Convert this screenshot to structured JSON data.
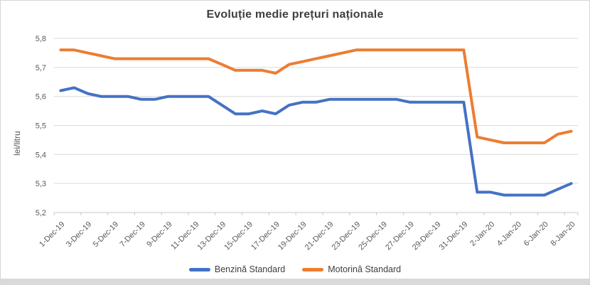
{
  "chart_data": {
    "type": "line",
    "title": "Evoluție medie prețuri naționale",
    "ylabel": "lei/litru",
    "xlabel": "",
    "ylim": [
      5.2,
      5.8
    ],
    "grid": true,
    "legend_position": "bottom",
    "decimal_separator": ",",
    "y_ticks": [
      {
        "label": "5,8",
        "value": 5.8
      },
      {
        "label": "5,7",
        "value": 5.7
      },
      {
        "label": "5,6",
        "value": 5.6
      },
      {
        "label": "5,5",
        "value": 5.5
      },
      {
        "label": "5,4",
        "value": 5.4
      },
      {
        "label": "5,3",
        "value": 5.3
      },
      {
        "label": "5,2",
        "value": 5.2
      }
    ],
    "categories": [
      "1-Dec-19",
      "2-Dec-19",
      "3-Dec-19",
      "4-Dec-19",
      "5-Dec-19",
      "6-Dec-19",
      "7-Dec-19",
      "8-Dec-19",
      "9-Dec-19",
      "10-Dec-19",
      "11-Dec-19",
      "12-Dec-19",
      "13-Dec-19",
      "14-Dec-19",
      "15-Dec-19",
      "16-Dec-19",
      "17-Dec-19",
      "18-Dec-19",
      "19-Dec-19",
      "20-Dec-19",
      "21-Dec-19",
      "22-Dec-19",
      "23-Dec-19",
      "24-Dec-19",
      "25-Dec-19",
      "26-Dec-19",
      "27-Dec-19",
      "28-Dec-19",
      "29-Dec-19",
      "30-Dec-19",
      "31-Dec-19",
      "1-Jan-20",
      "2-Jan-20",
      "3-Jan-20",
      "4-Jan-20",
      "5-Jan-20",
      "6-Jan-20",
      "7-Jan-20",
      "8-Jan-20"
    ],
    "x_tick_labels": [
      "1-Dec-19",
      "3-Dec-19",
      "5-Dec-19",
      "7-Dec-19",
      "9-Dec-19",
      "11-Dec-19",
      "13-Dec-19",
      "15-Dec-19",
      "17-Dec-19",
      "19-Dec-19",
      "21-Dec-19",
      "23-Dec-19",
      "25-Dec-19",
      "27-Dec-19",
      "29-Dec-19",
      "31-Dec-19",
      "2-Jan-20",
      "4-Jan-20",
      "6-Jan-20",
      "8-Jan-20"
    ],
    "series": [
      {
        "name": "Benzină Standard",
        "color": "#4472C4",
        "values": [
          5.62,
          5.63,
          5.61,
          5.6,
          5.6,
          5.6,
          5.59,
          5.59,
          5.6,
          5.6,
          5.6,
          5.6,
          5.57,
          5.54,
          5.54,
          5.55,
          5.54,
          5.57,
          5.58,
          5.58,
          5.59,
          5.59,
          5.59,
          5.59,
          5.59,
          5.59,
          5.58,
          5.58,
          5.58,
          5.58,
          5.58,
          5.27,
          5.27,
          5.26,
          5.26,
          5.26,
          5.26,
          5.28,
          5.3
        ]
      },
      {
        "name": "Motorinâ Standard",
        "color": "#ED7D31",
        "values": [
          5.76,
          5.76,
          5.75,
          5.74,
          5.73,
          5.73,
          5.73,
          5.73,
          5.73,
          5.73,
          5.73,
          5.73,
          5.71,
          5.69,
          5.69,
          5.69,
          5.68,
          5.71,
          5.72,
          5.73,
          5.74,
          5.75,
          5.76,
          5.76,
          5.76,
          5.76,
          5.76,
          5.76,
          5.76,
          5.76,
          5.76,
          5.46,
          5.45,
          5.44,
          5.44,
          5.44,
          5.44,
          5.47,
          5.48
        ]
      }
    ],
    "colors": {
      "gridline": "#d9d9d9",
      "axis": "#c9c9c9",
      "tick_text": "#595959",
      "title_text": "#3f3f3f"
    }
  }
}
